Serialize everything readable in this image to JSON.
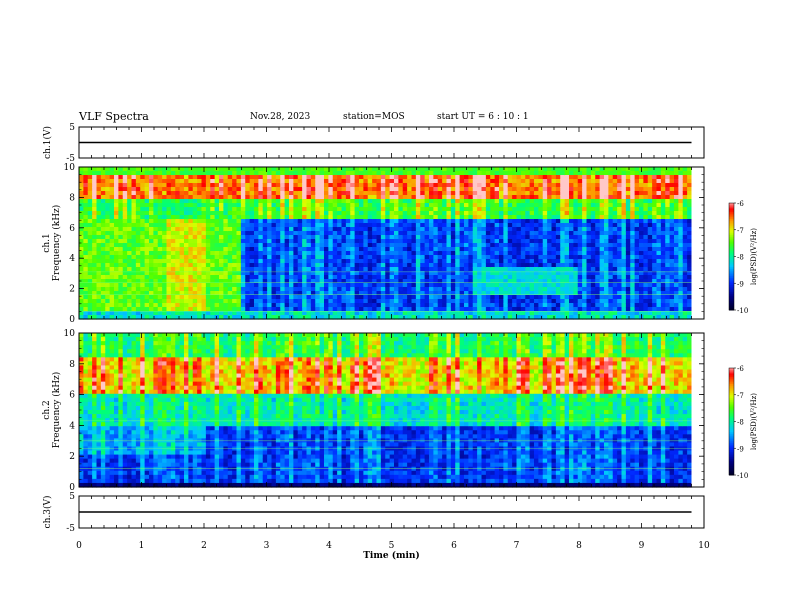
{
  "header": {
    "title": "VLF Spectra",
    "date": "Nov.28, 2023",
    "station": "station=MOS",
    "start_ut": "start UT =  6 : 10 : 1"
  },
  "chart_data": [
    {
      "type": "line",
      "ylabel": "ch.1(V)",
      "ylim": [
        -5,
        5
      ],
      "yticks": [
        "5",
        "-5"
      ],
      "x": [
        0,
        9.8
      ],
      "values": [
        0,
        0
      ],
      "color": "#000000"
    },
    {
      "type": "heatmap",
      "ylabel": "ch.1",
      "ylabel2": "Frequency (kHz)",
      "ylim": [
        0,
        10
      ],
      "yticks": [
        "0",
        "2",
        "4",
        "6",
        "8",
        "10"
      ],
      "xlim": [
        0,
        10
      ],
      "data_end_min": 9.8,
      "colorbar": {
        "label": "log(PSD)(V²/Hz)",
        "range": [
          -10,
          -6
        ],
        "ticks": [
          "-6",
          "-7",
          "-8",
          "-9",
          "-10"
        ],
        "colors": [
          "#00006e",
          "#0000ff",
          "#0080ff",
          "#00ffff",
          "#00ff00",
          "#ffff00",
          "#ff8000",
          "#ff0000",
          "#ffffff"
        ]
      }
    },
    {
      "type": "heatmap",
      "ylabel": "ch.2",
      "ylabel2": "Frequency (kHz)",
      "ylim": [
        0,
        10
      ],
      "yticks": [
        "0",
        "2",
        "4",
        "6",
        "8",
        "10"
      ],
      "xlim": [
        0,
        10
      ],
      "data_end_min": 9.8,
      "colorbar": {
        "label": "log(PSD)(V²/Hz)",
        "range": [
          -10,
          -6
        ],
        "ticks": [
          "-6",
          "-7",
          "-8",
          "-9",
          "-10"
        ]
      }
    },
    {
      "type": "line",
      "ylabel": "ch.3(V)",
      "ylim": [
        -5,
        5
      ],
      "yticks": [
        "5",
        "-5"
      ],
      "x": [
        0,
        9.8
      ],
      "values": [
        0,
        0
      ],
      "color": "#000000"
    }
  ],
  "x_axis": {
    "label": "Time (min)",
    "ticks": [
      "0",
      "1",
      "2",
      "3",
      "4",
      "5",
      "6",
      "7",
      "8",
      "9",
      "10"
    ],
    "range": [
      0,
      10
    ]
  }
}
